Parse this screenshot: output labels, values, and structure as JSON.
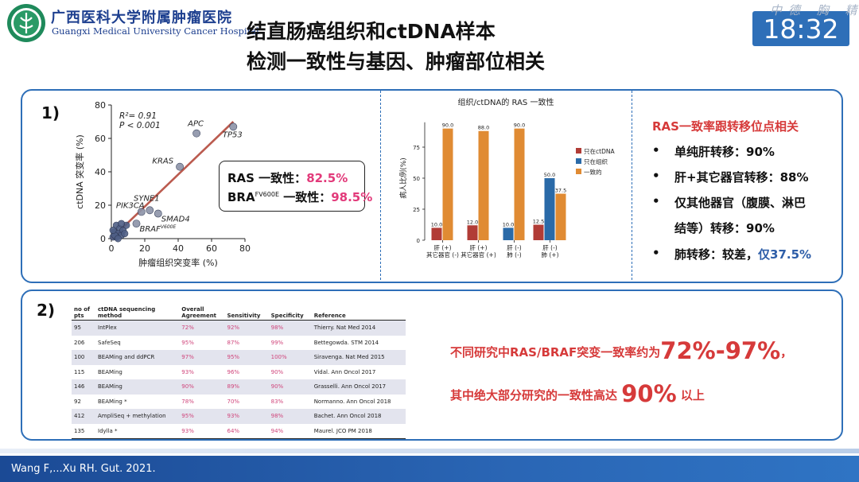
{
  "header": {
    "hospital_cn": "广西医科大学附属肿瘤医院",
    "hospital_en": "Guangxi Medical University Cancer Hospital",
    "title_line1": "结直肠癌组织和ctDNA样本",
    "title_line2": "检测一致性与基因、肿瘤部位相关",
    "clock": "18:32",
    "watermark": "中德 胸 精"
  },
  "panel1": {
    "label": "1)",
    "stats": {
      "ras_label": "RAS 一致性：",
      "ras_value": "82.5%",
      "braf_label_main": "BRA",
      "braf_label_sup": "FV600E",
      "braf_label_rest": " 一致性：",
      "braf_value": "98.5%"
    },
    "right": {
      "title": "RAS一致率跟转移位点相关",
      "bullets": [
        {
          "dot": "•",
          "text": "单纯肝转移：90%"
        },
        {
          "dot": "•",
          "text": "肝+其它器官转移：88%"
        },
        {
          "dot": "•",
          "text": "仅其他器官（腹膜、淋巴"
        },
        {
          "dot": "",
          "text": "结等）转移：90%"
        },
        {
          "dot": "•",
          "text_a": "肺转移：较差，",
          "text_b": "仅37.5%"
        }
      ]
    }
  },
  "chart_data": [
    {
      "type": "scatter",
      "xlabel": "肿瘤组织突变率 (%)",
      "ylabel": "ctDNA 突变率 (%)",
      "xlim": [
        0,
        80
      ],
      "ylim": [
        0,
        80
      ],
      "xticks": [
        "0",
        "20",
        "40",
        "60",
        "80"
      ],
      "yticks": [
        "0",
        "20",
        "40",
        "60",
        "80"
      ],
      "annotation_r2": "R²= 0.91",
      "annotation_p": "P < 0.001",
      "points": [
        {
          "x": 51,
          "y": 63,
          "label": "APC"
        },
        {
          "x": 73,
          "y": 67,
          "label": "TP53"
        },
        {
          "x": 41,
          "y": 43,
          "label": "KRAS"
        },
        {
          "x": 23,
          "y": 17,
          "label": "SYNE1"
        },
        {
          "x": 18,
          "y": 16,
          "label": "PIK3CA"
        },
        {
          "x": 28,
          "y": 15,
          "label": "SMAD4"
        },
        {
          "x": 15,
          "y": 9,
          "label": "BRAF",
          "label_sup": "V600E"
        },
        {
          "x": 3,
          "y": 8,
          "label": ""
        },
        {
          "x": 5,
          "y": 6,
          "label": ""
        },
        {
          "x": 2,
          "y": 4,
          "label": ""
        },
        {
          "x": 4,
          "y": 3,
          "label": ""
        },
        {
          "x": 6,
          "y": 2,
          "label": ""
        },
        {
          "x": 1,
          "y": 1,
          "label": ""
        },
        {
          "x": 3,
          "y": 1,
          "label": ""
        },
        {
          "x": 7,
          "y": 5,
          "label": ""
        },
        {
          "x": 2,
          "y": 2,
          "label": ""
        },
        {
          "x": 8,
          "y": 3,
          "label": ""
        },
        {
          "x": 1,
          "y": 5,
          "label": ""
        },
        {
          "x": 4,
          "y": 0,
          "label": ""
        },
        {
          "x": 9,
          "y": 8,
          "label": ""
        },
        {
          "x": 6,
          "y": 9,
          "label": ""
        }
      ],
      "fit_line": [
        [
          0,
          0
        ],
        [
          73,
          70
        ]
      ]
    },
    {
      "type": "bar",
      "title": "组织/ctDNA的 RAS 一致性",
      "ylabel": "病人比例(%)",
      "ylim": [
        0,
        100
      ],
      "yticks": [
        "0",
        "25",
        "50",
        "75"
      ],
      "categories": [
        [
          "肝 (+)",
          "其它器官 (-)"
        ],
        [
          "肝 (+)",
          "其它器官 (+)"
        ],
        [
          "肝 (-)",
          "肺 (-)"
        ],
        [
          "肝 (-)",
          "肺 (+)"
        ]
      ],
      "series": [
        {
          "name": "只在ctDNA",
          "color": "#b13c36",
          "values": [
            10.0,
            12.0,
            null,
            12.5
          ]
        },
        {
          "name": "只在组织",
          "color": "#2a6aa8",
          "values": [
            null,
            null,
            10.0,
            50.0
          ]
        },
        {
          "name": "一致的",
          "color": "#e08b33",
          "values": [
            90.0,
            88.0,
            90.0,
            37.5
          ]
        }
      ],
      "data_labels": [
        [
          "10.0",
          "12.0",
          "",
          "12.5"
        ],
        [
          "",
          "",
          "10.0",
          "50.0"
        ],
        [
          "90.0",
          "88.0",
          "90.0",
          "37.5"
        ]
      ]
    }
  ],
  "panel2": {
    "label": "2)",
    "table": {
      "headers": [
        [
          "no of",
          "pts"
        ],
        [
          "ctDNA sequencing",
          "method"
        ],
        [
          "Overall",
          "Agreement"
        ],
        [
          "",
          "Sensitivity"
        ],
        [
          "",
          "Specificity"
        ],
        [
          "",
          "Reference"
        ]
      ],
      "rows": [
        [
          "95",
          "IntPlex",
          "72%",
          "92%",
          "98%",
          "Thierry. Nat Med 2014"
        ],
        [
          "206",
          "SafeSeq",
          "95%",
          "87%",
          "99%",
          "Bettegowda. STM 2014"
        ],
        [
          "100",
          "BEAMing and ddPCR",
          "97%",
          "95%",
          "100%",
          "Siravenga. Nat Med 2015"
        ],
        [
          "115",
          "BEAMing",
          "93%",
          "96%",
          "90%",
          "Vidal. Ann Oncol 2017"
        ],
        [
          "146",
          "BEAMing",
          "90%",
          "89%",
          "90%",
          "Grasselli. Ann Oncol 2017"
        ],
        [
          "92",
          "BEAMing *",
          "78%",
          "70%",
          "83%",
          "Normanno. Ann Oncol 2018"
        ],
        [
          "412",
          "AmpliSeq + methylation",
          "95%",
          "93%",
          "98%",
          "Bachet. Ann Oncol 2018"
        ],
        [
          "135",
          "Idylla *",
          "93%",
          "64%",
          "94%",
          "Maurel. JCO PM 2018"
        ]
      ]
    },
    "conclusion1_a": "不同研究中RAS/BRAF突变一致率约为",
    "conclusion1_b": "72%-97%",
    "conclusion1_c": "，",
    "conclusion2_a": "其中绝大部分研究的一致性高达",
    "conclusion2_b": "90%",
    "conclusion2_c": "以上"
  },
  "footer": {
    "reference": "Wang F,...Xu RH. Gut. 2021."
  }
}
